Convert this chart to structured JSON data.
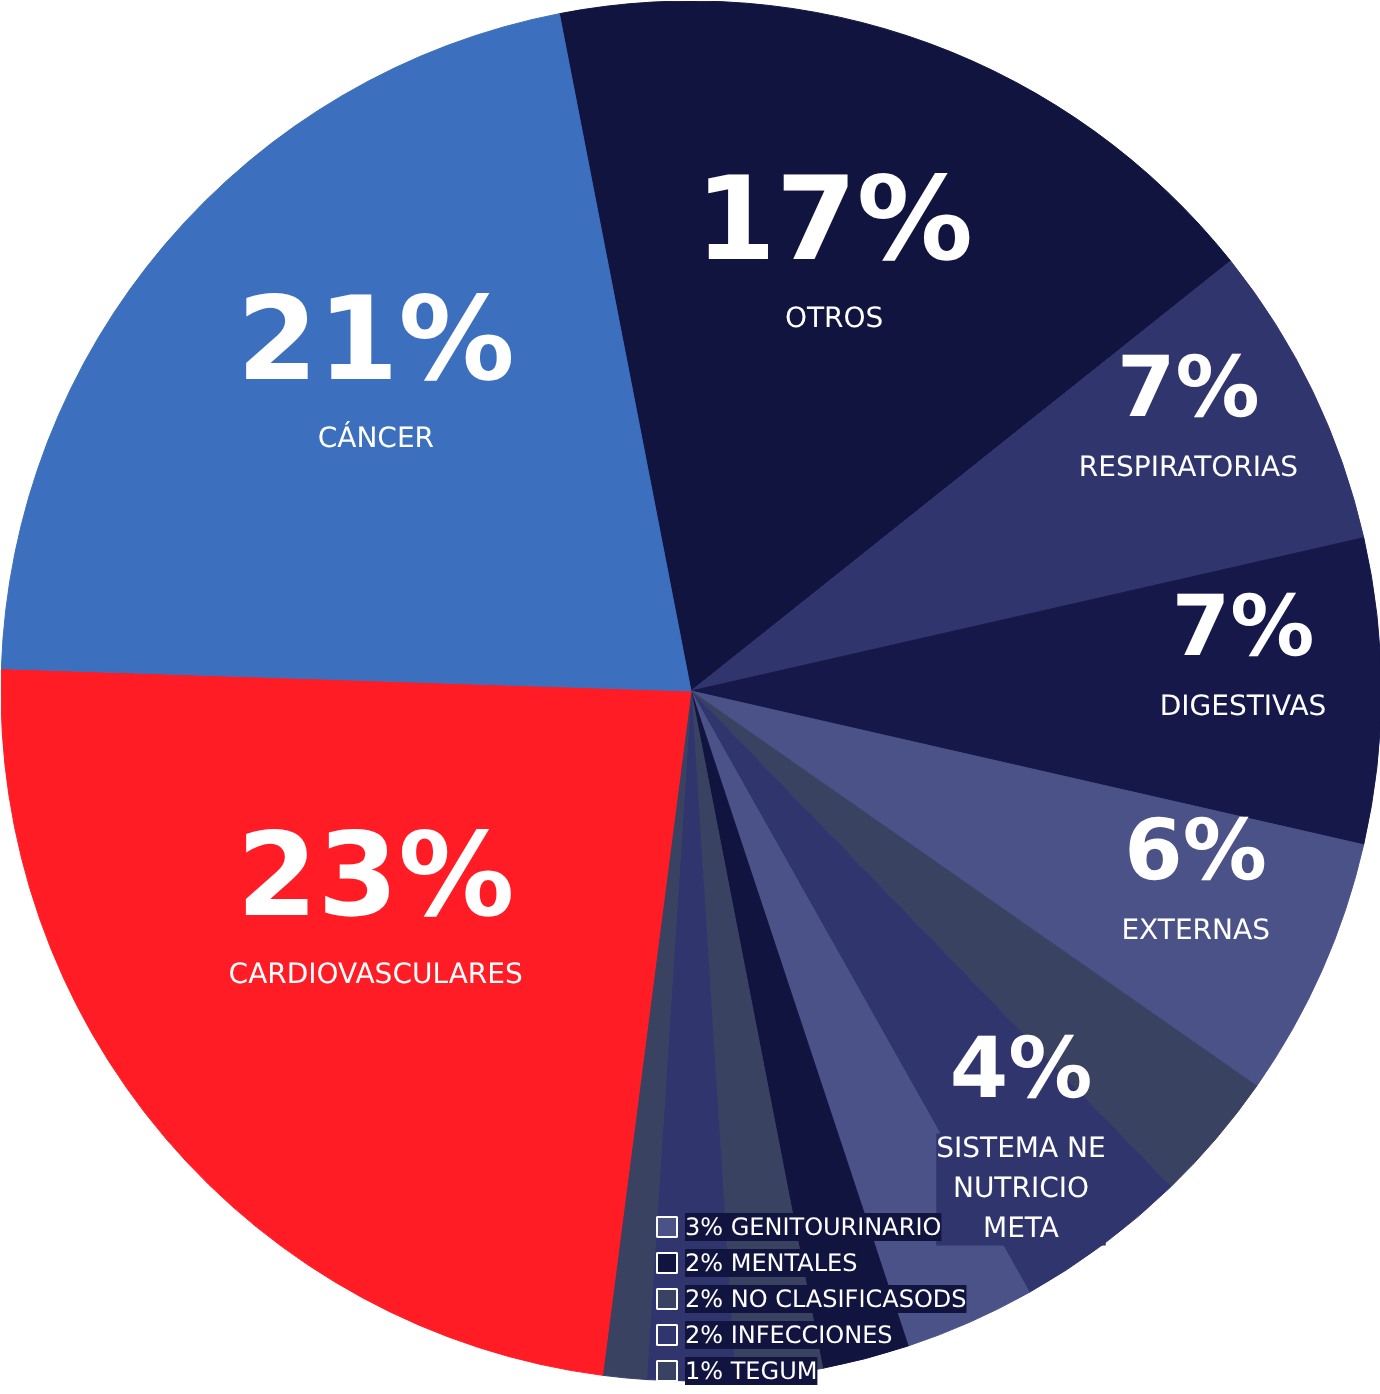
{
  "chart_data": {
    "type": "pie",
    "categories": [
      "OTROS",
      "RESPIRATORIAS",
      "DIGESTIVAS",
      "EXTERNAS",
      null,
      "SISTEMA NE\nNUTRICIO\nMETA",
      "GENITOURINARIO",
      "MENTALES",
      "NO CLASIFICASODS",
      "INFECCIONES",
      "TEGUM",
      "CARDIOVASCULARES",
      "CÁNCER"
    ],
    "values": [
      17,
      7,
      7,
      6,
      3,
      4,
      3,
      2,
      2,
      2,
      1,
      23,
      21
    ],
    "value_labels": [
      "17%",
      "7%",
      "7%",
      "6%",
      null,
      "4%",
      "3%",
      "2%",
      "2%",
      "2%",
      "1%",
      "23%",
      "21%"
    ],
    "colors": [
      "#121440",
      "#30356e",
      "#16184a",
      "#4a5288",
      "#3a4262",
      "#30356e",
      "#4a5288",
      "#121440",
      "#3a4262",
      "#30356e",
      "#3a4262",
      "#ff1c25",
      "#3c6fbe"
    ],
    "legend": "bottom"
  }
}
